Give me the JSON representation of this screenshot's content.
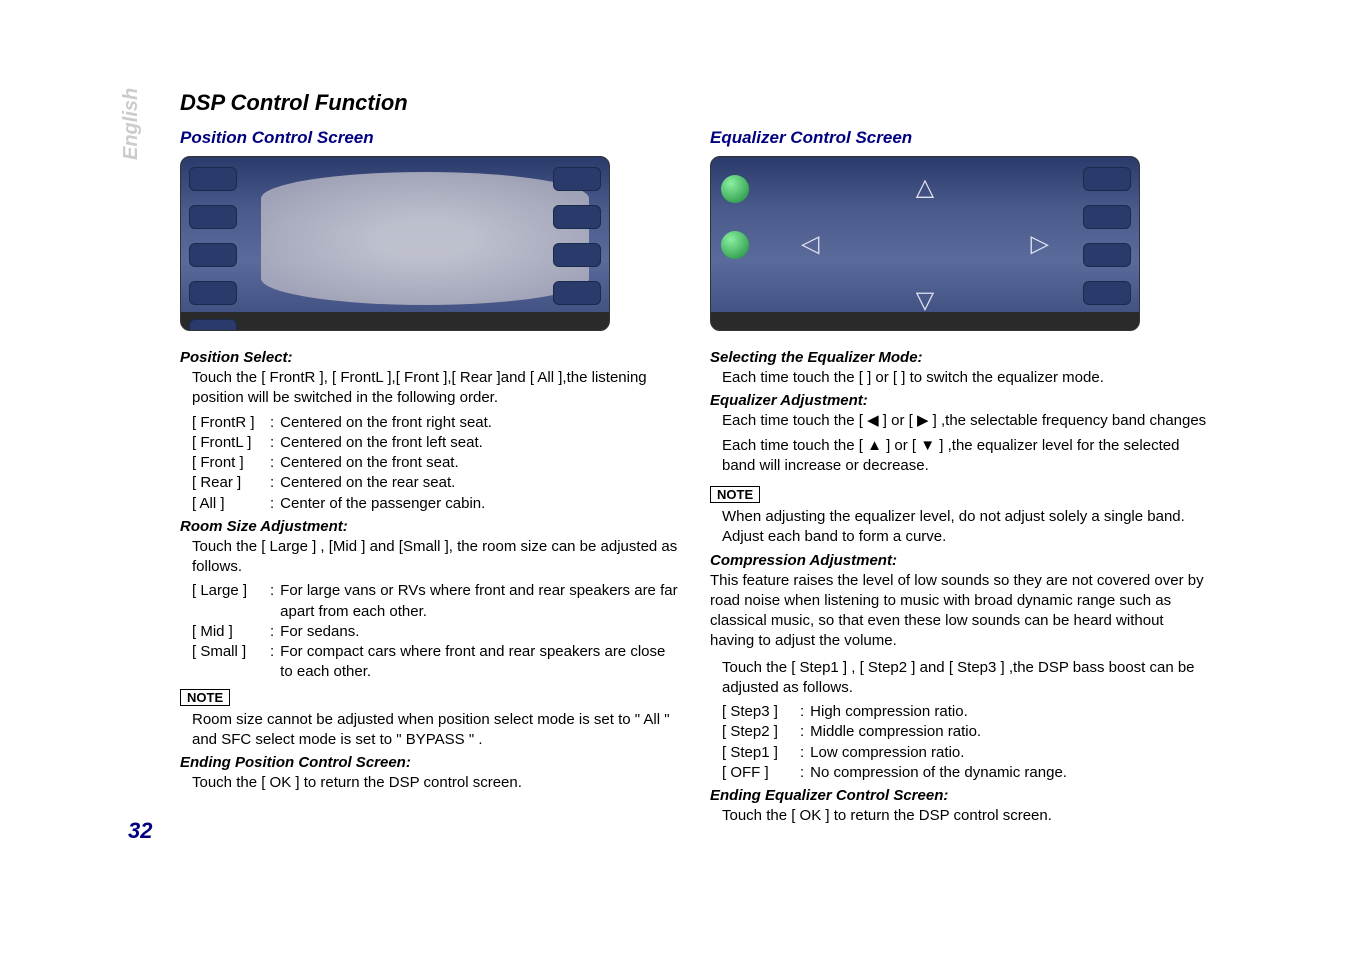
{
  "page": {
    "section_title": "DSP Control Function",
    "language_tab": "English",
    "page_number": "32"
  },
  "left": {
    "header": "Position Control Screen",
    "position_select": {
      "title": "Position Select:",
      "intro": "Touch the [ FrontR ], [ FrontL ],[ Front  ],[ Rear ]and [ All ],the listening position will be switched in the following order.",
      "rows": [
        {
          "key": "[ FrontR ]",
          "val": "Centered on the front right seat."
        },
        {
          "key": "[ FrontL ]",
          "val": "Centered on the front left seat."
        },
        {
          "key": "[ Front ]",
          "val": "Centered on the front seat."
        },
        {
          "key": "[ Rear ]",
          "val": "Centered on the rear seat."
        },
        {
          "key": "[ All ]",
          "val": "Center of the passenger cabin."
        }
      ]
    },
    "room_size": {
      "title": "Room Size Adjustment:",
      "intro": "Touch the [ Large ] , [Mid ] and [Small ], the room size can be adjusted as follows.",
      "rows": [
        {
          "key": "[ Large ]",
          "val": "For large vans or RVs where front and rear speakers are far apart from each other."
        },
        {
          "key": "[ Mid ]",
          "val": "For sedans."
        },
        {
          "key": "[ Small ]",
          "val": "For compact cars where front and rear speakers are close to each other."
        }
      ]
    },
    "note_label": "NOTE",
    "note_text": "Room size cannot be adjusted when position select mode is set to \" All \" and SFC select mode is set to \" BYPASS \" .",
    "ending": {
      "title": "Ending Position Control Screen:",
      "text": "Touch the [ OK ] to return the DSP control screen."
    }
  },
  "right": {
    "header": "Equalizer Control Screen",
    "select_mode": {
      "title": "Selecting the Equalizer Mode:",
      "text": "Each time touch the [     ] or [    ] to switch the equalizer mode."
    },
    "eq_adjust": {
      "title": "Equalizer Adjustment:",
      "line1": "Each time touch the [ ◀ ] or [ ▶ ] ,the selectable frequency band changes",
      "line2": "Each time touch the [ ▲ ] or [ ▼ ] ,the equalizer level for the selected band will increase or decrease."
    },
    "note_label": "NOTE",
    "note_text": "When adjusting the equalizer level, do not adjust solely a single band. Adjust each band to form a curve.",
    "compression": {
      "title": "Compression Adjustment:",
      "intro": "This feature raises the level of low sounds so they are not covered over by road noise when listening to music with broad dynamic range such as classical music, so that even these low sounds can be heard without having to adjust the volume.",
      "touch": "Touch the [ Step1 ] , [ Step2 ] and [ Step3 ] ,the DSP bass boost can be adjusted as follows.",
      "rows": [
        {
          "key": "[ Step3 ]",
          "val": "High compression ratio."
        },
        {
          "key": "[ Step2 ]",
          "val": "Middle compression ratio."
        },
        {
          "key": "[ Step1 ]",
          "val": "Low compression ratio."
        },
        {
          "key": "[ OFF  ]",
          "val": "No compression of the dynamic range."
        }
      ]
    },
    "ending": {
      "title": "Ending Equalizer Control Screen:",
      "text": "Touch the [ OK ] to return the DSP control screen."
    }
  },
  "style": {
    "heading_color": "#000080",
    "body_color": "#000000",
    "background": "#ffffff",
    "language_tab_color": "#cccccc"
  }
}
